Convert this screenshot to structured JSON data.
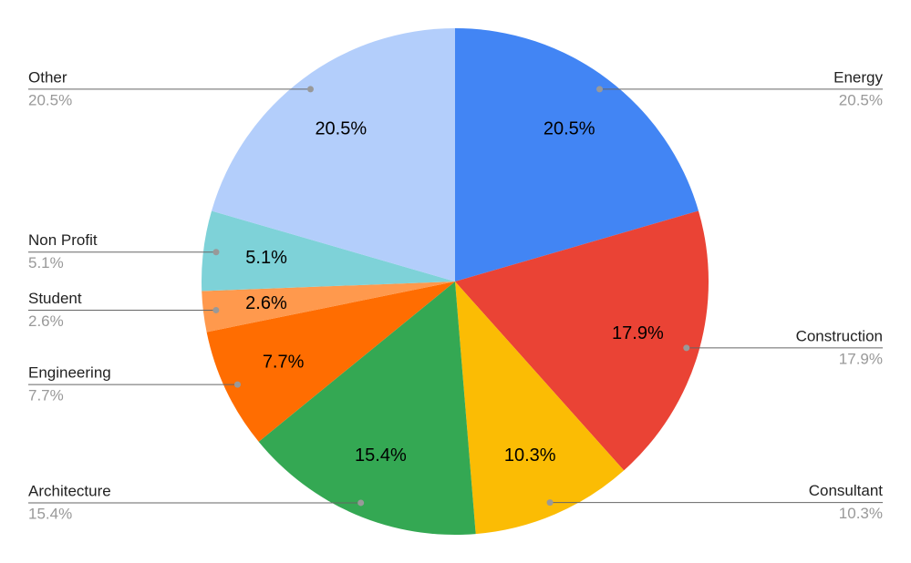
{
  "chart_data": {
    "type": "pie",
    "categories": [
      "Energy",
      "Construction",
      "Consultant",
      "Architecture",
      "Engineering",
      "Student",
      "Non Profit",
      "Other"
    ],
    "values": [
      20.5,
      17.9,
      10.3,
      15.4,
      7.7,
      2.6,
      5.1,
      20.5
    ],
    "value_labels": [
      "20.5%",
      "17.9%",
      "10.3%",
      "15.4%",
      "7.7%",
      "2.6%",
      "5.1%",
      "20.5%"
    ],
    "colors": [
      "#4285f4",
      "#ea4335",
      "#fbbc04",
      "#34a853",
      "#ff6d01",
      "#ff994d",
      "#7ed2d8",
      "#b3cefb"
    ]
  }
}
